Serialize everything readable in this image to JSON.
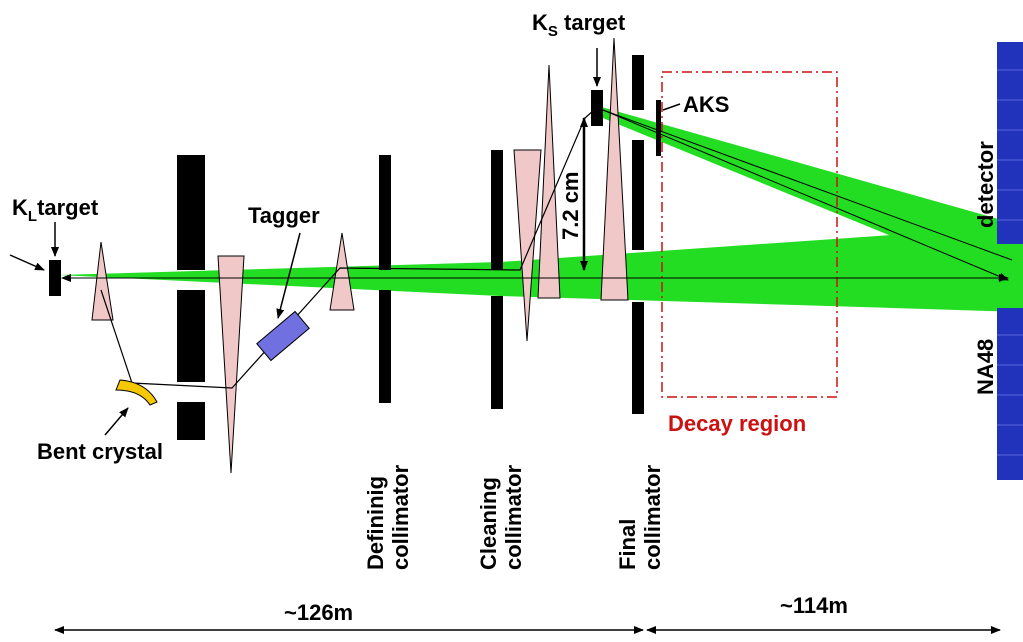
{
  "labels": {
    "ks_target_main": "K",
    "ks_target_sub": "S",
    "ks_target_rest": " target",
    "kl_target_main": "K",
    "kl_target_sub": "L",
    "kl_target_rest": "target",
    "aks": "AKS",
    "tagger": "Tagger",
    "bent_crystal": "Bent crystal",
    "distance_72": "7.2 cm",
    "detector": "detector",
    "na48": "NA48",
    "decay_region": "Decay region",
    "defining_collimator_l1": "Defininig",
    "defining_collimator_l2": "collimator",
    "cleaning_collimator_l1": "Cleaning",
    "cleaning_collimator_l2": "collimator",
    "final_collimator_l1": "Final",
    "final_collimator_l2": "collimator",
    "dist_126": "~126m",
    "dist_114": "~114m"
  },
  "colors": {
    "beam": "#22dd22",
    "magnet": "#f0c8c8",
    "tagger": "#7070e0",
    "crystal": "#f5c800",
    "detector": "#2233bb",
    "decay_region": "#cc1111"
  }
}
